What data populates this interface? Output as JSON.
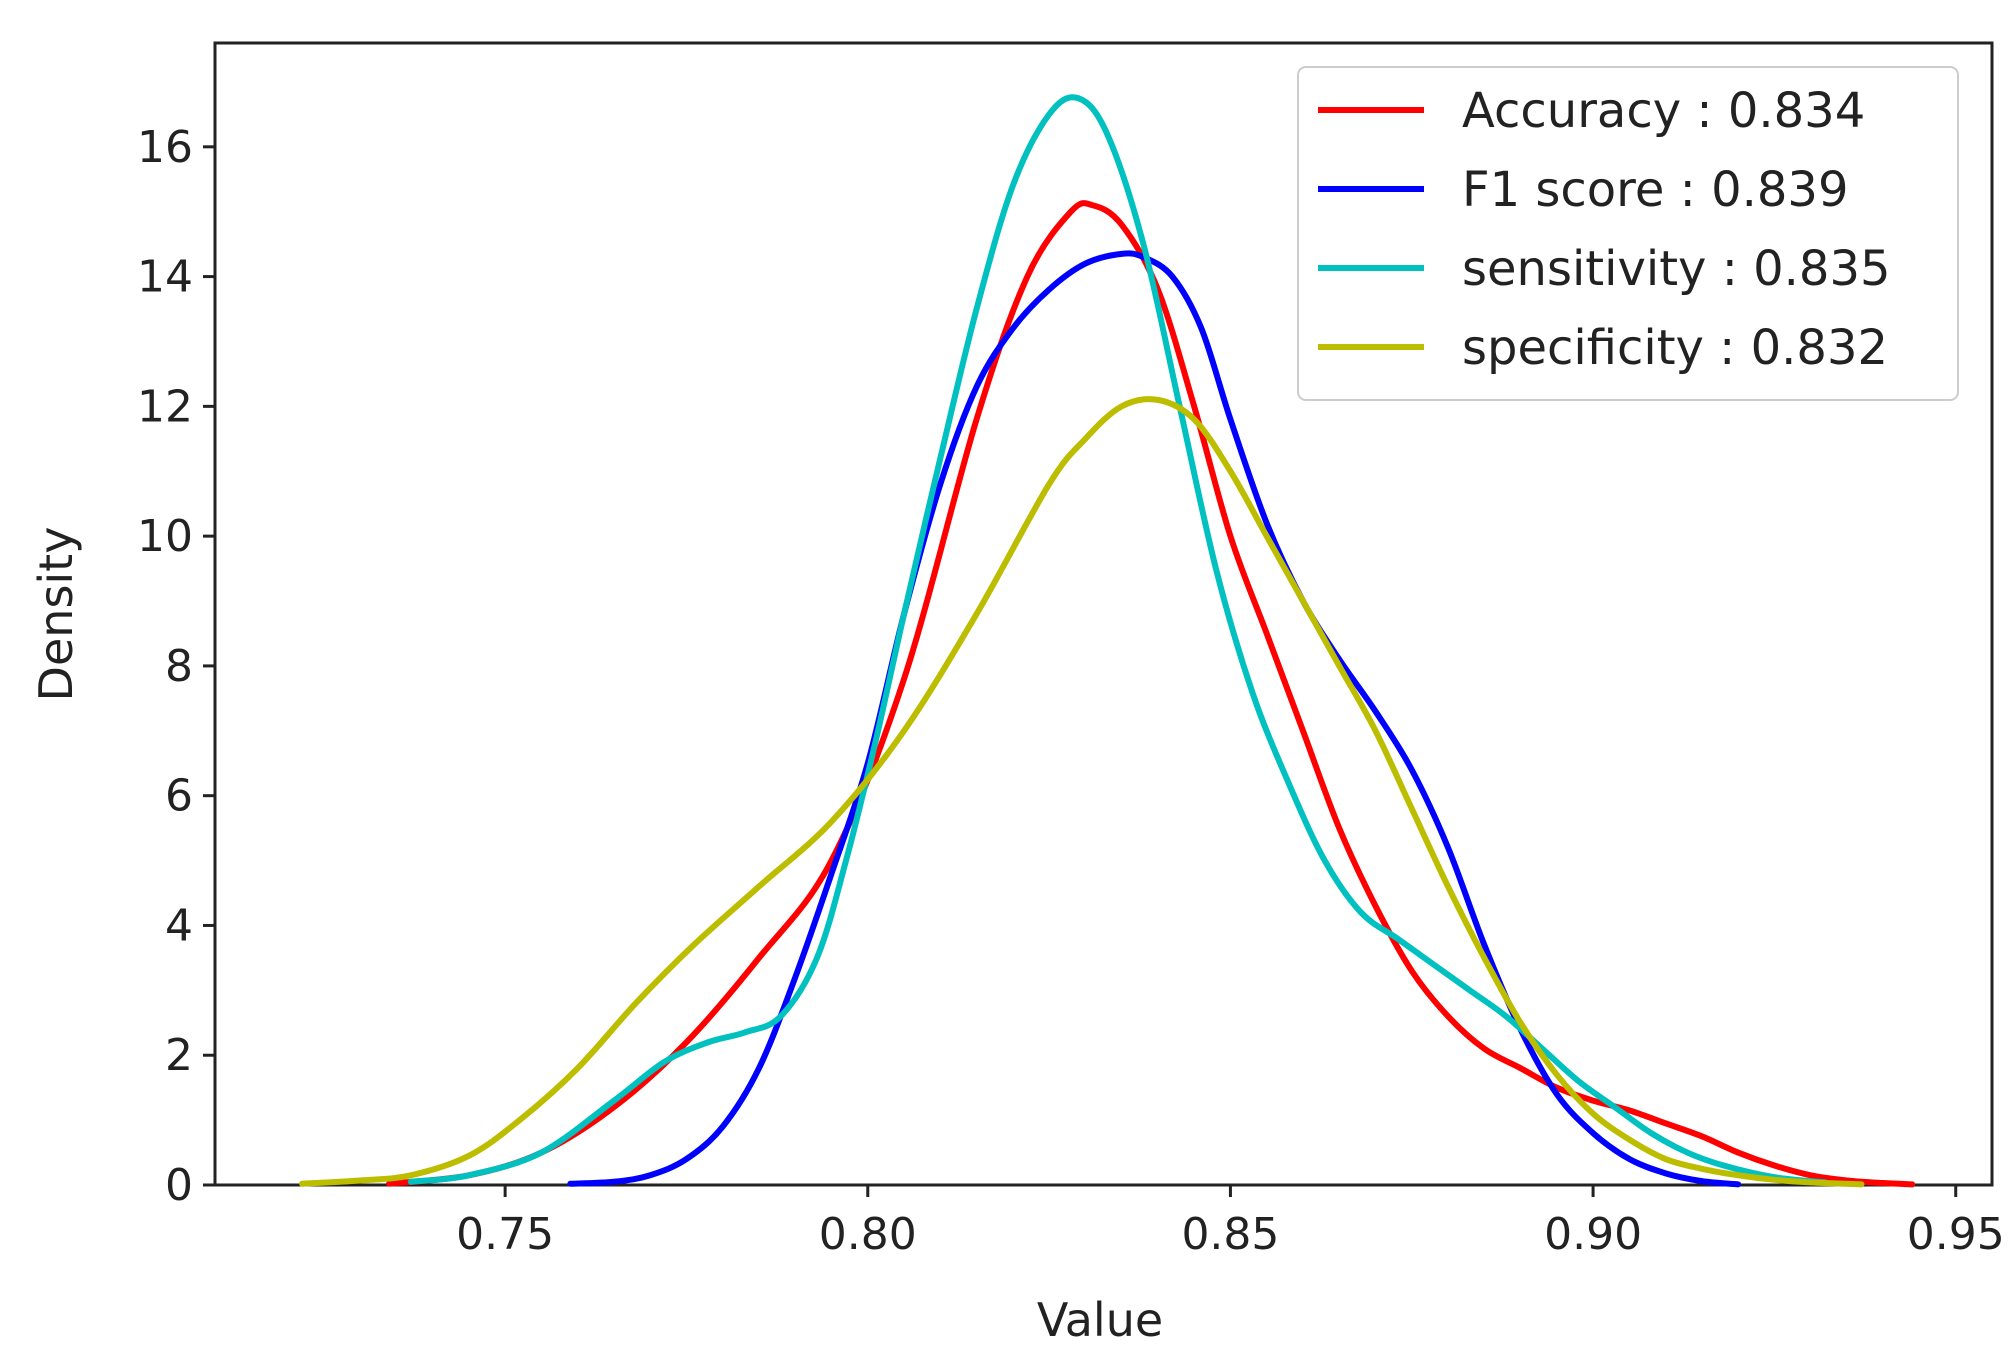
{
  "chart_data": {
    "type": "line",
    "title": "",
    "xlabel": "Value",
    "ylabel": "Density",
    "xlim": [
      0.71,
      0.955
    ],
    "ylim": [
      0,
      17.6
    ],
    "xticks": [
      0.75,
      0.8,
      0.85,
      0.9,
      0.95
    ],
    "xtick_labels": [
      "0.75",
      "0.80",
      "0.85",
      "0.90",
      "0.95"
    ],
    "yticks": [
      0,
      2,
      4,
      6,
      8,
      10,
      12,
      14,
      16
    ],
    "ytick_labels": [
      "0",
      "2",
      "4",
      "6",
      "8",
      "10",
      "12",
      "14",
      "16"
    ],
    "grid": false,
    "legend_position": "top-right",
    "series": [
      {
        "name": "Accuracy : 0.834",
        "color": "#ff0000",
        "x": [
          0.734,
          0.745,
          0.755,
          0.765,
          0.775,
          0.785,
          0.795,
          0.805,
          0.815,
          0.822,
          0.828,
          0.831,
          0.835,
          0.84,
          0.845,
          0.85,
          0.855,
          0.86,
          0.865,
          0.87,
          0.875,
          0.88,
          0.885,
          0.89,
          0.895,
          0.9,
          0.905,
          0.91,
          0.915,
          0.92,
          0.925,
          0.93,
          0.935,
          0.94,
          0.944
        ],
        "y": [
          0.02,
          0.15,
          0.5,
          1.2,
          2.2,
          3.5,
          5.0,
          7.8,
          11.8,
          14.0,
          15.0,
          15.1,
          14.8,
          13.8,
          12.0,
          10.0,
          8.5,
          7.0,
          5.5,
          4.3,
          3.3,
          2.6,
          2.1,
          1.8,
          1.5,
          1.3,
          1.15,
          0.95,
          0.75,
          0.5,
          0.3,
          0.15,
          0.07,
          0.03,
          0.01
        ]
      },
      {
        "name": "F1 score : 0.839",
        "color": "#0000ff",
        "x": [
          0.759,
          0.765,
          0.77,
          0.775,
          0.78,
          0.785,
          0.79,
          0.795,
          0.8,
          0.805,
          0.81,
          0.815,
          0.82,
          0.825,
          0.83,
          0.835,
          0.838,
          0.842,
          0.846,
          0.85,
          0.855,
          0.86,
          0.865,
          0.87,
          0.875,
          0.88,
          0.885,
          0.89,
          0.895,
          0.9,
          0.905,
          0.91,
          0.915,
          0.92
        ],
        "y": [
          0.02,
          0.05,
          0.15,
          0.4,
          0.9,
          1.8,
          3.2,
          4.8,
          6.5,
          8.8,
          10.8,
          12.3,
          13.2,
          13.8,
          14.2,
          14.35,
          14.3,
          14.0,
          13.2,
          11.8,
          10.2,
          9.0,
          8.1,
          7.3,
          6.4,
          5.2,
          3.7,
          2.4,
          1.4,
          0.8,
          0.4,
          0.18,
          0.06,
          0.01
        ]
      },
      {
        "name": "sensitivity : 0.835",
        "color": "#00c0c0",
        "x": [
          0.737,
          0.745,
          0.755,
          0.765,
          0.772,
          0.778,
          0.783,
          0.788,
          0.793,
          0.797,
          0.801,
          0.805,
          0.81,
          0.815,
          0.82,
          0.825,
          0.829,
          0.833,
          0.838,
          0.843,
          0.848,
          0.853,
          0.858,
          0.863,
          0.868,
          0.873,
          0.878,
          0.883,
          0.888,
          0.893,
          0.898,
          0.903,
          0.908,
          0.913,
          0.918,
          0.925,
          0.932
        ],
        "y": [
          0.05,
          0.15,
          0.5,
          1.3,
          1.9,
          2.2,
          2.35,
          2.6,
          3.5,
          5.0,
          6.8,
          8.8,
          11.2,
          13.5,
          15.4,
          16.5,
          16.75,
          16.2,
          14.5,
          12.0,
          9.5,
          7.6,
          6.2,
          5.0,
          4.2,
          3.8,
          3.4,
          3.0,
          2.6,
          2.1,
          1.6,
          1.2,
          0.8,
          0.5,
          0.3,
          0.12,
          0.04
        ]
      },
      {
        "name": "specificity : 0.832",
        "color": "#bdbd00",
        "x": [
          0.722,
          0.73,
          0.737,
          0.745,
          0.752,
          0.76,
          0.768,
          0.776,
          0.785,
          0.795,
          0.805,
          0.815,
          0.825,
          0.83,
          0.835,
          0.84,
          0.845,
          0.85,
          0.855,
          0.86,
          0.865,
          0.87,
          0.875,
          0.88,
          0.885,
          0.89,
          0.895,
          0.9,
          0.905,
          0.91,
          0.915,
          0.92,
          0.925,
          0.93,
          0.937
        ],
        "y": [
          0.02,
          0.07,
          0.15,
          0.45,
          1.0,
          1.8,
          2.8,
          3.7,
          4.6,
          5.6,
          7.0,
          8.8,
          10.8,
          11.5,
          12.0,
          12.1,
          11.8,
          11.0,
          10.0,
          9.0,
          8.0,
          7.0,
          5.8,
          4.6,
          3.5,
          2.5,
          1.7,
          1.1,
          0.7,
          0.4,
          0.25,
          0.15,
          0.08,
          0.04,
          0.01
        ]
      }
    ]
  }
}
